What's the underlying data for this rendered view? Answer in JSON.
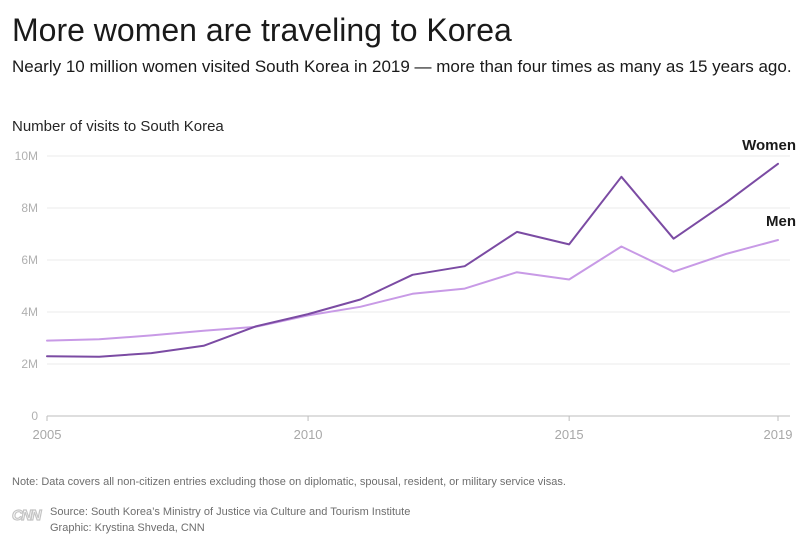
{
  "header": {
    "title": "More women are traveling to Korea",
    "subtitle": "Nearly 10 million women visited South Korea in 2019 — more than four times as many as 15 years ago."
  },
  "chart_data": {
    "type": "line",
    "ylabel": "Number of visits to South Korea",
    "xlabel": "",
    "x": [
      2005,
      2006,
      2007,
      2008,
      2009,
      2010,
      2011,
      2012,
      2013,
      2014,
      2015,
      2016,
      2017,
      2018,
      2019
    ],
    "series": [
      {
        "name": "Women",
        "color": "#7b4ba3",
        "values": [
          2.3,
          2.28,
          2.42,
          2.7,
          3.45,
          3.92,
          4.48,
          5.43,
          5.76,
          7.08,
          6.6,
          9.2,
          6.82,
          8.2,
          9.7
        ]
      },
      {
        "name": "Men",
        "color": "#c89ae6",
        "values": [
          2.9,
          2.95,
          3.1,
          3.28,
          3.43,
          3.87,
          4.2,
          4.7,
          4.9,
          5.53,
          5.25,
          6.52,
          5.55,
          6.23,
          6.77
        ]
      }
    ],
    "ylim": [
      0,
      10
    ],
    "yticks": [
      0,
      2,
      4,
      6,
      8,
      10
    ],
    "ytick_labels": [
      "0",
      "2M",
      "4M",
      "6M",
      "8M",
      "10M"
    ],
    "xlim": [
      2005,
      2019
    ],
    "xticks": [
      2005,
      2010,
      2015,
      2019
    ],
    "xtick_labels": [
      "2005",
      "2010",
      "2015",
      "2019"
    ],
    "grid": true,
    "legend": "inline labels at line ends"
  },
  "footer": {
    "note": "Note: Data covers all non-citizen entries excluding those on diplomatic, spousal, resident, or military service visas.",
    "source": "Source: South Korea’s Ministry of Justice via Culture and Tourism Institute",
    "graphic": "Graphic: Krystina Shveda, CNN",
    "logo_icon": "cnn-logo-icon"
  }
}
